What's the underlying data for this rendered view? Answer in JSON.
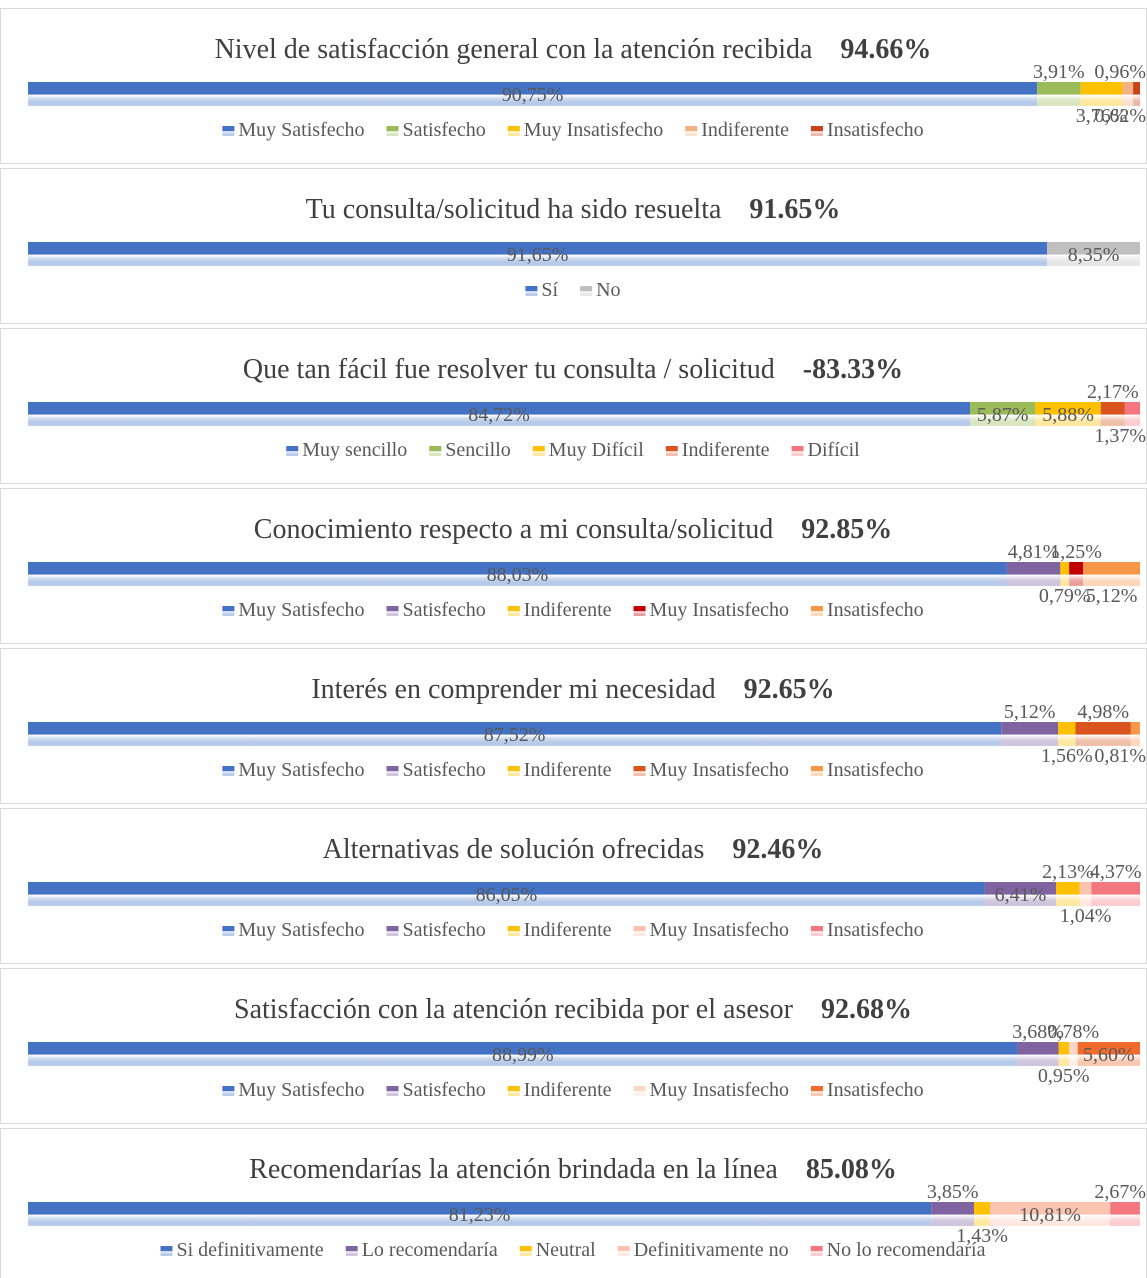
{
  "chart_data": [
    {
      "type": "stacked-bar",
      "title": "Nivel de satisfacción general con la atención recibida",
      "headline": "94.66%",
      "xlim": [
        0,
        100
      ],
      "series": [
        {
          "name": "Muy Satisfecho",
          "color": "#4472c4",
          "values": [
            90.75
          ],
          "value_labels": [
            "90,75%"
          ]
        },
        {
          "name": "Satisfecho",
          "color": "#9bbb59",
          "values": [
            3.91
          ],
          "value_labels": [
            "3,91%"
          ]
        },
        {
          "name": "Muy Insatisfecho",
          "color": "#ffc000",
          "values": [
            3.76
          ],
          "value_labels": [
            "3,76%"
          ]
        },
        {
          "name": "Indiferente",
          "color": "#f4b183",
          "values": [
            0.96
          ],
          "value_labels": [
            "0,96%"
          ]
        },
        {
          "name": "Insatisfecho",
          "color": "#c9421a",
          "values": [
            0.62
          ],
          "value_labels": [
            "0,62%"
          ]
        }
      ]
    },
    {
      "type": "stacked-bar",
      "title": "Tu consulta/solicitud ha sido resuelta",
      "headline": "91.65%",
      "xlim": [
        0,
        100
      ],
      "series": [
        {
          "name": "Sí",
          "color": "#4472c4",
          "values": [
            91.65
          ],
          "value_labels": [
            "91,65%"
          ]
        },
        {
          "name": "No",
          "color": "#bfbfbf",
          "values": [
            8.35
          ],
          "value_labels": [
            "8,35%"
          ]
        }
      ]
    },
    {
      "type": "stacked-bar",
      "title": "Que tan fácil fue resolver tu consulta / solicitud",
      "headline": "-83.33%",
      "xlim": [
        0,
        100
      ],
      "series": [
        {
          "name": "Muy sencillo",
          "color": "#4472c4",
          "values": [
            84.72
          ],
          "value_labels": [
            "84,72%"
          ]
        },
        {
          "name": "Sencillo",
          "color": "#9bbb59",
          "values": [
            5.87
          ],
          "value_labels": [
            "5,87%"
          ]
        },
        {
          "name": "Muy Difícil",
          "color": "#ffc000",
          "values": [
            5.88
          ],
          "value_labels": [
            "5,88%"
          ]
        },
        {
          "name": "Indiferente",
          "color": "#d9541e",
          "values": [
            2.17
          ],
          "value_labels": [
            "2,17%"
          ]
        },
        {
          "name": "Difícil",
          "color": "#f4777f",
          "values": [
            1.37
          ],
          "value_labels": [
            "1,37%"
          ]
        }
      ]
    },
    {
      "type": "stacked-bar",
      "title": "Conocimiento respecto a mi consulta/solicitud",
      "headline": "92.85%",
      "xlim": [
        0,
        100
      ],
      "series": [
        {
          "name": "Muy Satisfecho",
          "color": "#4472c4",
          "values": [
            88.03
          ],
          "value_labels": [
            "88,03%"
          ]
        },
        {
          "name": "Satisfecho",
          "color": "#8064a2",
          "values": [
            4.81
          ],
          "value_labels": [
            "4,81%"
          ]
        },
        {
          "name": "Indiferente",
          "color": "#ffc000",
          "values": [
            0.79
          ],
          "value_labels": [
            "0,79%"
          ]
        },
        {
          "name": "Muy Insatisfecho",
          "color": "#c00000",
          "values": [
            1.25
          ],
          "value_labels": [
            "1,25%"
          ]
        },
        {
          "name": "Insatisfecho",
          "color": "#f79646",
          "values": [
            5.12
          ],
          "value_labels": [
            "5,12%"
          ]
        }
      ]
    },
    {
      "type": "stacked-bar",
      "title": "Interés en comprender mi necesidad",
      "headline": "92.65%",
      "xlim": [
        0,
        100
      ],
      "series": [
        {
          "name": "Muy Satisfecho",
          "color": "#4472c4",
          "values": [
            87.52
          ],
          "value_labels": [
            "87,52%"
          ]
        },
        {
          "name": "Satisfecho",
          "color": "#8064a2",
          "values": [
            5.12
          ],
          "value_labels": [
            "5,12%"
          ]
        },
        {
          "name": "Indiferente",
          "color": "#ffc000",
          "values": [
            1.56
          ],
          "value_labels": [
            "1,56%"
          ]
        },
        {
          "name": "Muy Insatisfecho",
          "color": "#d9541e",
          "values": [
            4.98
          ],
          "value_labels": [
            "4,98%"
          ]
        },
        {
          "name": "Insatisfecho",
          "color": "#f79646",
          "values": [
            0.81
          ],
          "value_labels": [
            "0,81%"
          ]
        }
      ]
    },
    {
      "type": "stacked-bar",
      "title": "Alternativas de solución ofrecidas",
      "headline": "92.46%",
      "xlim": [
        0,
        100
      ],
      "series": [
        {
          "name": "Muy Satisfecho",
          "color": "#4472c4",
          "values": [
            86.05
          ],
          "value_labels": [
            "86,05%"
          ]
        },
        {
          "name": "Satisfecho",
          "color": "#8064a2",
          "values": [
            6.41
          ],
          "value_labels": [
            "6,41%"
          ]
        },
        {
          "name": "Indiferente",
          "color": "#ffc000",
          "values": [
            2.13
          ],
          "value_labels": [
            "2,13%"
          ]
        },
        {
          "name": "Muy Insatisfecho",
          "color": "#fbc4b0",
          "values": [
            1.04
          ],
          "value_labels": [
            "1,04%"
          ]
        },
        {
          "name": "Insatisfecho",
          "color": "#f4777f",
          "values": [
            4.37
          ],
          "value_labels": [
            "4,37%"
          ]
        }
      ]
    },
    {
      "type": "stacked-bar",
      "title": "Satisfacción con la atención recibida por el asesor",
      "headline": "92.68%",
      "xlim": [
        0,
        100
      ],
      "series": [
        {
          "name": "Muy Satisfecho",
          "color": "#4472c4",
          "values": [
            88.99
          ],
          "value_labels": [
            "88,99%"
          ]
        },
        {
          "name": "Satisfecho",
          "color": "#8064a2",
          "values": [
            3.68
          ],
          "value_labels": [
            "3,68%"
          ]
        },
        {
          "name": "Indiferente",
          "color": "#ffc000",
          "values": [
            0.95
          ],
          "value_labels": [
            "0,95%"
          ]
        },
        {
          "name": "Muy Insatisfecho",
          "color": "#fbd5c5",
          "values": [
            0.78
          ],
          "value_labels": [
            "0,78%"
          ]
        },
        {
          "name": "Insatisfecho",
          "color": "#f26b2c",
          "values": [
            5.6
          ],
          "value_labels": [
            "5,60%"
          ]
        }
      ]
    },
    {
      "type": "stacked-bar",
      "title": "Recomendarías la atención brindada en la línea",
      "headline": "85.08%",
      "xlim": [
        0,
        100
      ],
      "series": [
        {
          "name": "Si definitivamente",
          "color": "#4472c4",
          "values": [
            81.23
          ],
          "value_labels": [
            "81,23%"
          ]
        },
        {
          "name": "Lo recomendaría",
          "color": "#8064a2",
          "values": [
            3.85
          ],
          "value_labels": [
            "3,85%"
          ]
        },
        {
          "name": "Neutral",
          "color": "#ffc000",
          "values": [
            1.43
          ],
          "value_labels": [
            "1,43%"
          ]
        },
        {
          "name": "Definitivamente no",
          "color": "#fbc4b0",
          "values": [
            10.81
          ],
          "value_labels": [
            "10,81%"
          ]
        },
        {
          "name": "No lo recomendaría",
          "color": "#f4777f",
          "values": [
            2.67
          ],
          "value_labels": [
            "2,67%"
          ]
        }
      ]
    }
  ]
}
